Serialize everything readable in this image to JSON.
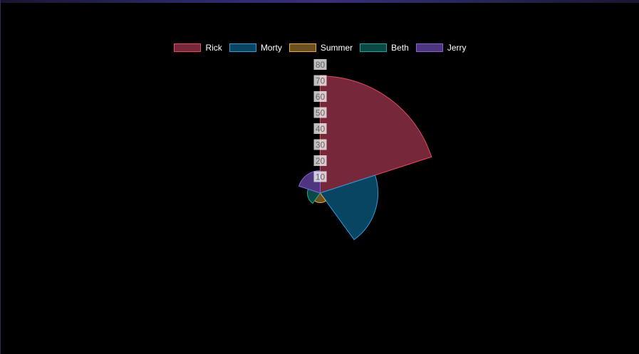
{
  "chart_data": {
    "type": "polarArea",
    "series": [
      {
        "name": "Rick",
        "value": 73,
        "fill": "#76283a",
        "stroke": "#e8495f"
      },
      {
        "name": "Morty",
        "value": 36,
        "fill": "#074563",
        "stroke": "#2f9fdc"
      },
      {
        "name": "Summer",
        "value": 6,
        "fill": "#6b5020",
        "stroke": "#f0a73a"
      },
      {
        "name": "Beth",
        "value": 8,
        "fill": "#0a4a46",
        "stroke": "#1fa69b"
      },
      {
        "name": "Jerry",
        "value": 14,
        "fill": "#4d3580",
        "stroke": "#8b5fd8"
      }
    ],
    "r_ticks": [
      10,
      20,
      30,
      40,
      50,
      60,
      70,
      80
    ],
    "rlim": [
      0,
      80
    ],
    "legend_position": "top",
    "grid": false
  }
}
